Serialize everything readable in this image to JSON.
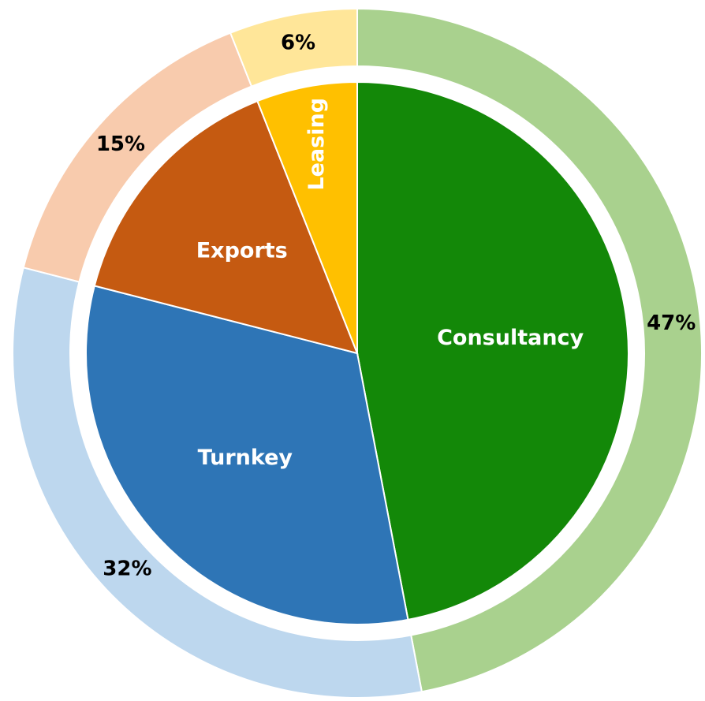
{
  "chart_data": {
    "type": "pie",
    "categories": [
      "Consultancy",
      "Turnkey",
      "Exports",
      "Leasing"
    ],
    "values": [
      47,
      32,
      15,
      6
    ],
    "value_labels": [
      "47%",
      "32%",
      "15%",
      "6%"
    ],
    "colors": [
      "#138808",
      "#2e75b6",
      "#c55a11",
      "#ffc000"
    ],
    "ring_colors": [
      "#a9d18e",
      "#bdd7ee",
      "#f8cbad",
      "#ffe699"
    ]
  }
}
